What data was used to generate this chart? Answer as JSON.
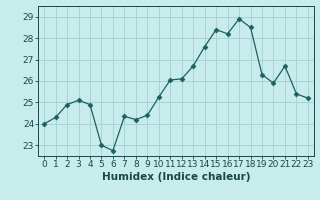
{
  "x": [
    0,
    1,
    2,
    3,
    4,
    5,
    6,
    7,
    8,
    9,
    10,
    11,
    12,
    13,
    14,
    15,
    16,
    17,
    18,
    19,
    20,
    21,
    22,
    23
  ],
  "y": [
    24.0,
    24.3,
    24.9,
    25.1,
    24.9,
    23.0,
    22.75,
    24.35,
    24.2,
    24.4,
    25.25,
    26.05,
    26.1,
    26.7,
    27.6,
    28.4,
    28.2,
    28.9,
    28.5,
    26.3,
    25.9,
    26.7,
    25.4,
    25.2
  ],
  "line_color": "#1e6060",
  "marker": "D",
  "marker_size": 2.5,
  "bg_color": "#c8ecec",
  "grid_color": "#a8d4d4",
  "xlabel": "Humidex (Indice chaleur)",
  "ylim": [
    22.5,
    29.5
  ],
  "yticks": [
    23,
    24,
    25,
    26,
    27,
    28,
    29
  ],
  "xticks": [
    0,
    1,
    2,
    3,
    4,
    5,
    6,
    7,
    8,
    9,
    10,
    11,
    12,
    13,
    14,
    15,
    16,
    17,
    18,
    19,
    20,
    21,
    22,
    23
  ],
  "font_color": "#1a4848",
  "tick_font_size": 6.5,
  "label_font_size": 7.5
}
